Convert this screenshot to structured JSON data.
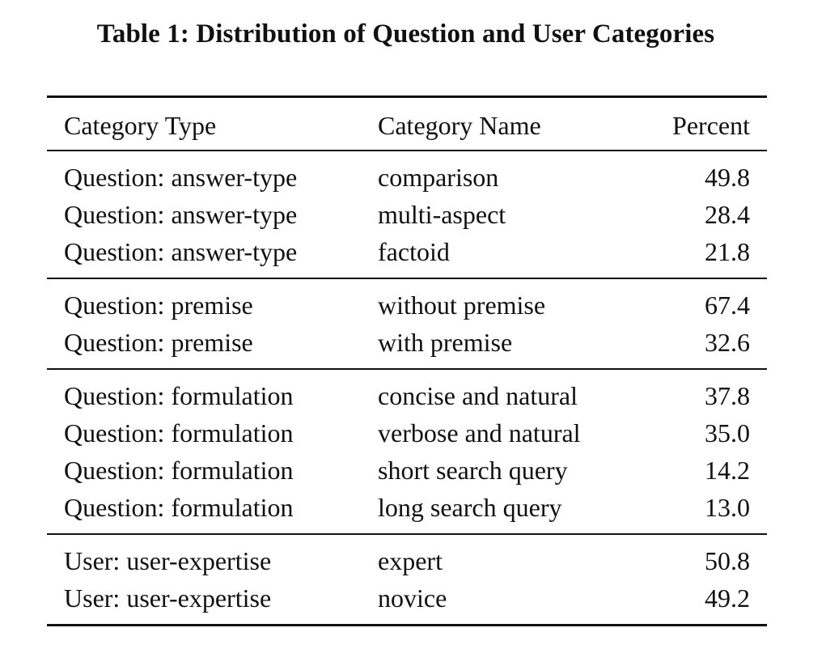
{
  "caption": "Table 1: Distribution of Question and User Categories",
  "table": {
    "headers": {
      "category_type": "Category Type",
      "category_name": "Category Name",
      "percent": "Percent"
    },
    "groups": [
      {
        "rows": [
          {
            "type": "Question: answer-type",
            "name": "comparison",
            "percent": "49.8"
          },
          {
            "type": "Question: answer-type",
            "name": "multi-aspect",
            "percent": "28.4"
          },
          {
            "type": "Question: answer-type",
            "name": "factoid",
            "percent": "21.8"
          }
        ]
      },
      {
        "rows": [
          {
            "type": "Question: premise",
            "name": "without premise",
            "percent": "67.4"
          },
          {
            "type": "Question: premise",
            "name": "with premise",
            "percent": "32.6"
          }
        ]
      },
      {
        "rows": [
          {
            "type": "Question: formulation",
            "name": "concise and natural",
            "percent": "37.8"
          },
          {
            "type": "Question: formulation",
            "name": "verbose and natural",
            "percent": "35.0"
          },
          {
            "type": "Question: formulation",
            "name": "short search query",
            "percent": "14.2"
          },
          {
            "type": "Question: formulation",
            "name": "long search query",
            "percent": "13.0"
          }
        ]
      },
      {
        "rows": [
          {
            "type": "User: user-expertise",
            "name": "expert",
            "percent": "50.8"
          },
          {
            "type": "User: user-expertise",
            "name": "novice",
            "percent": "49.2"
          }
        ]
      }
    ]
  }
}
